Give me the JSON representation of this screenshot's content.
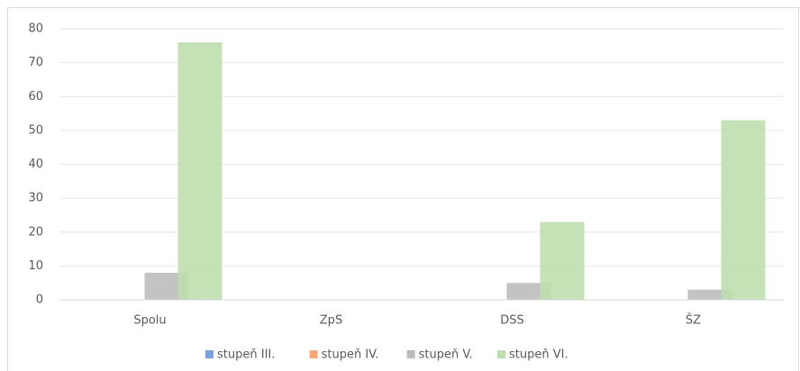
{
  "chart_data": {
    "type": "bar",
    "categories": [
      "Spolu",
      "ZpS",
      "DSS",
      "ŠZ"
    ],
    "series": [
      {
        "name": "stupeň III.",
        "color": "#7f9fd8",
        "values": [
          0,
          0,
          0,
          0
        ]
      },
      {
        "name": "stupeň IV.",
        "color": "#f4a77a",
        "values": [
          0,
          0,
          0,
          0
        ]
      },
      {
        "name": "stupeň V.",
        "color": "#bcbcbc",
        "values": [
          8,
          0,
          5,
          3
        ]
      },
      {
        "name": "stupeň VI.",
        "color": "#bfdeae",
        "values": [
          76,
          0,
          23,
          53
        ]
      }
    ],
    "ylim": [
      0,
      80
    ],
    "yticks": [
      0,
      10,
      20,
      30,
      40,
      50,
      60,
      70,
      80
    ],
    "grid": true,
    "legend": "bottom"
  }
}
